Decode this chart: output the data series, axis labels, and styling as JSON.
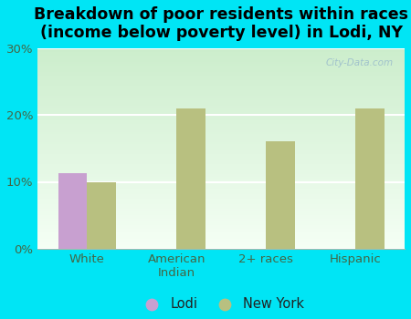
{
  "title": "Breakdown of poor residents within races\n(income below poverty level) in Lodi, NY",
  "categories": [
    "White",
    "American\nIndian",
    "2+ races",
    "Hispanic"
  ],
  "lodi_values": [
    11.3,
    0,
    0,
    0
  ],
  "ny_values": [
    10.0,
    21.0,
    16.0,
    21.0
  ],
  "lodi_color": "#c8a0d0",
  "ny_color": "#b8c080",
  "bg_outer": "#00e5f5",
  "bg_plot_top": "#cce8cc",
  "bg_plot_bottom": "#f0fff0",
  "ylim": [
    0,
    30
  ],
  "yticks": [
    0,
    10,
    20,
    30
  ],
  "ytick_labels": [
    "0%",
    "10%",
    "20%",
    "30%"
  ],
  "legend_labels": [
    "Lodi",
    "New York"
  ],
  "watermark": "City-Data.com",
  "title_fontsize": 12.5,
  "tick_fontsize": 9.5,
  "legend_fontsize": 10.5,
  "bar_width": 0.32
}
